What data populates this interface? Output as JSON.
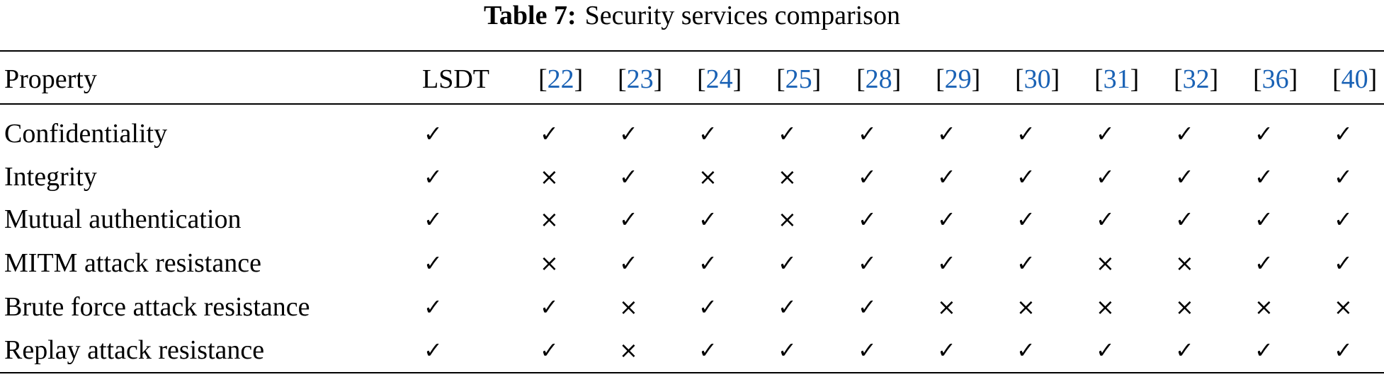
{
  "caption": {
    "label": "Table 7:",
    "text": "Security services comparison"
  },
  "table": {
    "header": [
      [
        "Property"
      ],
      [
        "LSDT"
      ],
      [
        "[",
        "22",
        "]"
      ],
      [
        "[",
        "23",
        "]"
      ],
      [
        "[",
        "24",
        "]"
      ],
      [
        "[",
        "25",
        "]"
      ],
      [
        "[",
        "28",
        "]"
      ],
      [
        "[",
        "29",
        "]"
      ],
      [
        "[",
        "30",
        "]"
      ],
      [
        "[",
        "31",
        "]"
      ],
      [
        "[",
        "32",
        "]"
      ],
      [
        "[",
        "36",
        "]"
      ],
      [
        "[",
        "40",
        "]"
      ]
    ],
    "rows": [
      [
        "Confidentiality",
        "✓",
        "✓",
        "✓",
        "✓",
        "✓",
        "✓",
        "✓",
        "✓",
        "✓",
        "✓",
        "✓",
        "✓"
      ],
      [
        "Integrity",
        "✓",
        "×",
        "✓",
        "×",
        "×",
        "✓",
        "✓",
        "✓",
        "✓",
        "✓",
        "✓",
        "✓"
      ],
      [
        "Mutual authentication",
        "✓",
        "×",
        "✓",
        "✓",
        "×",
        "✓",
        "✓",
        "✓",
        "✓",
        "✓",
        "✓",
        "✓"
      ],
      [
        "MITM attack resistance",
        "✓",
        "×",
        "✓",
        "✓",
        "✓",
        "✓",
        "✓",
        "✓",
        "×",
        "×",
        "✓",
        "✓"
      ],
      [
        "Brute force attack resistance",
        "✓",
        "✓",
        "×",
        "✓",
        "✓",
        "✓",
        "×",
        "×",
        "×",
        "×",
        "×",
        "×"
      ],
      [
        "Replay attack resistance",
        "✓",
        "✓",
        "×",
        "✓",
        "✓",
        "✓",
        "✓",
        "✓",
        "✓",
        "✓",
        "✓",
        "✓"
      ]
    ]
  }
}
